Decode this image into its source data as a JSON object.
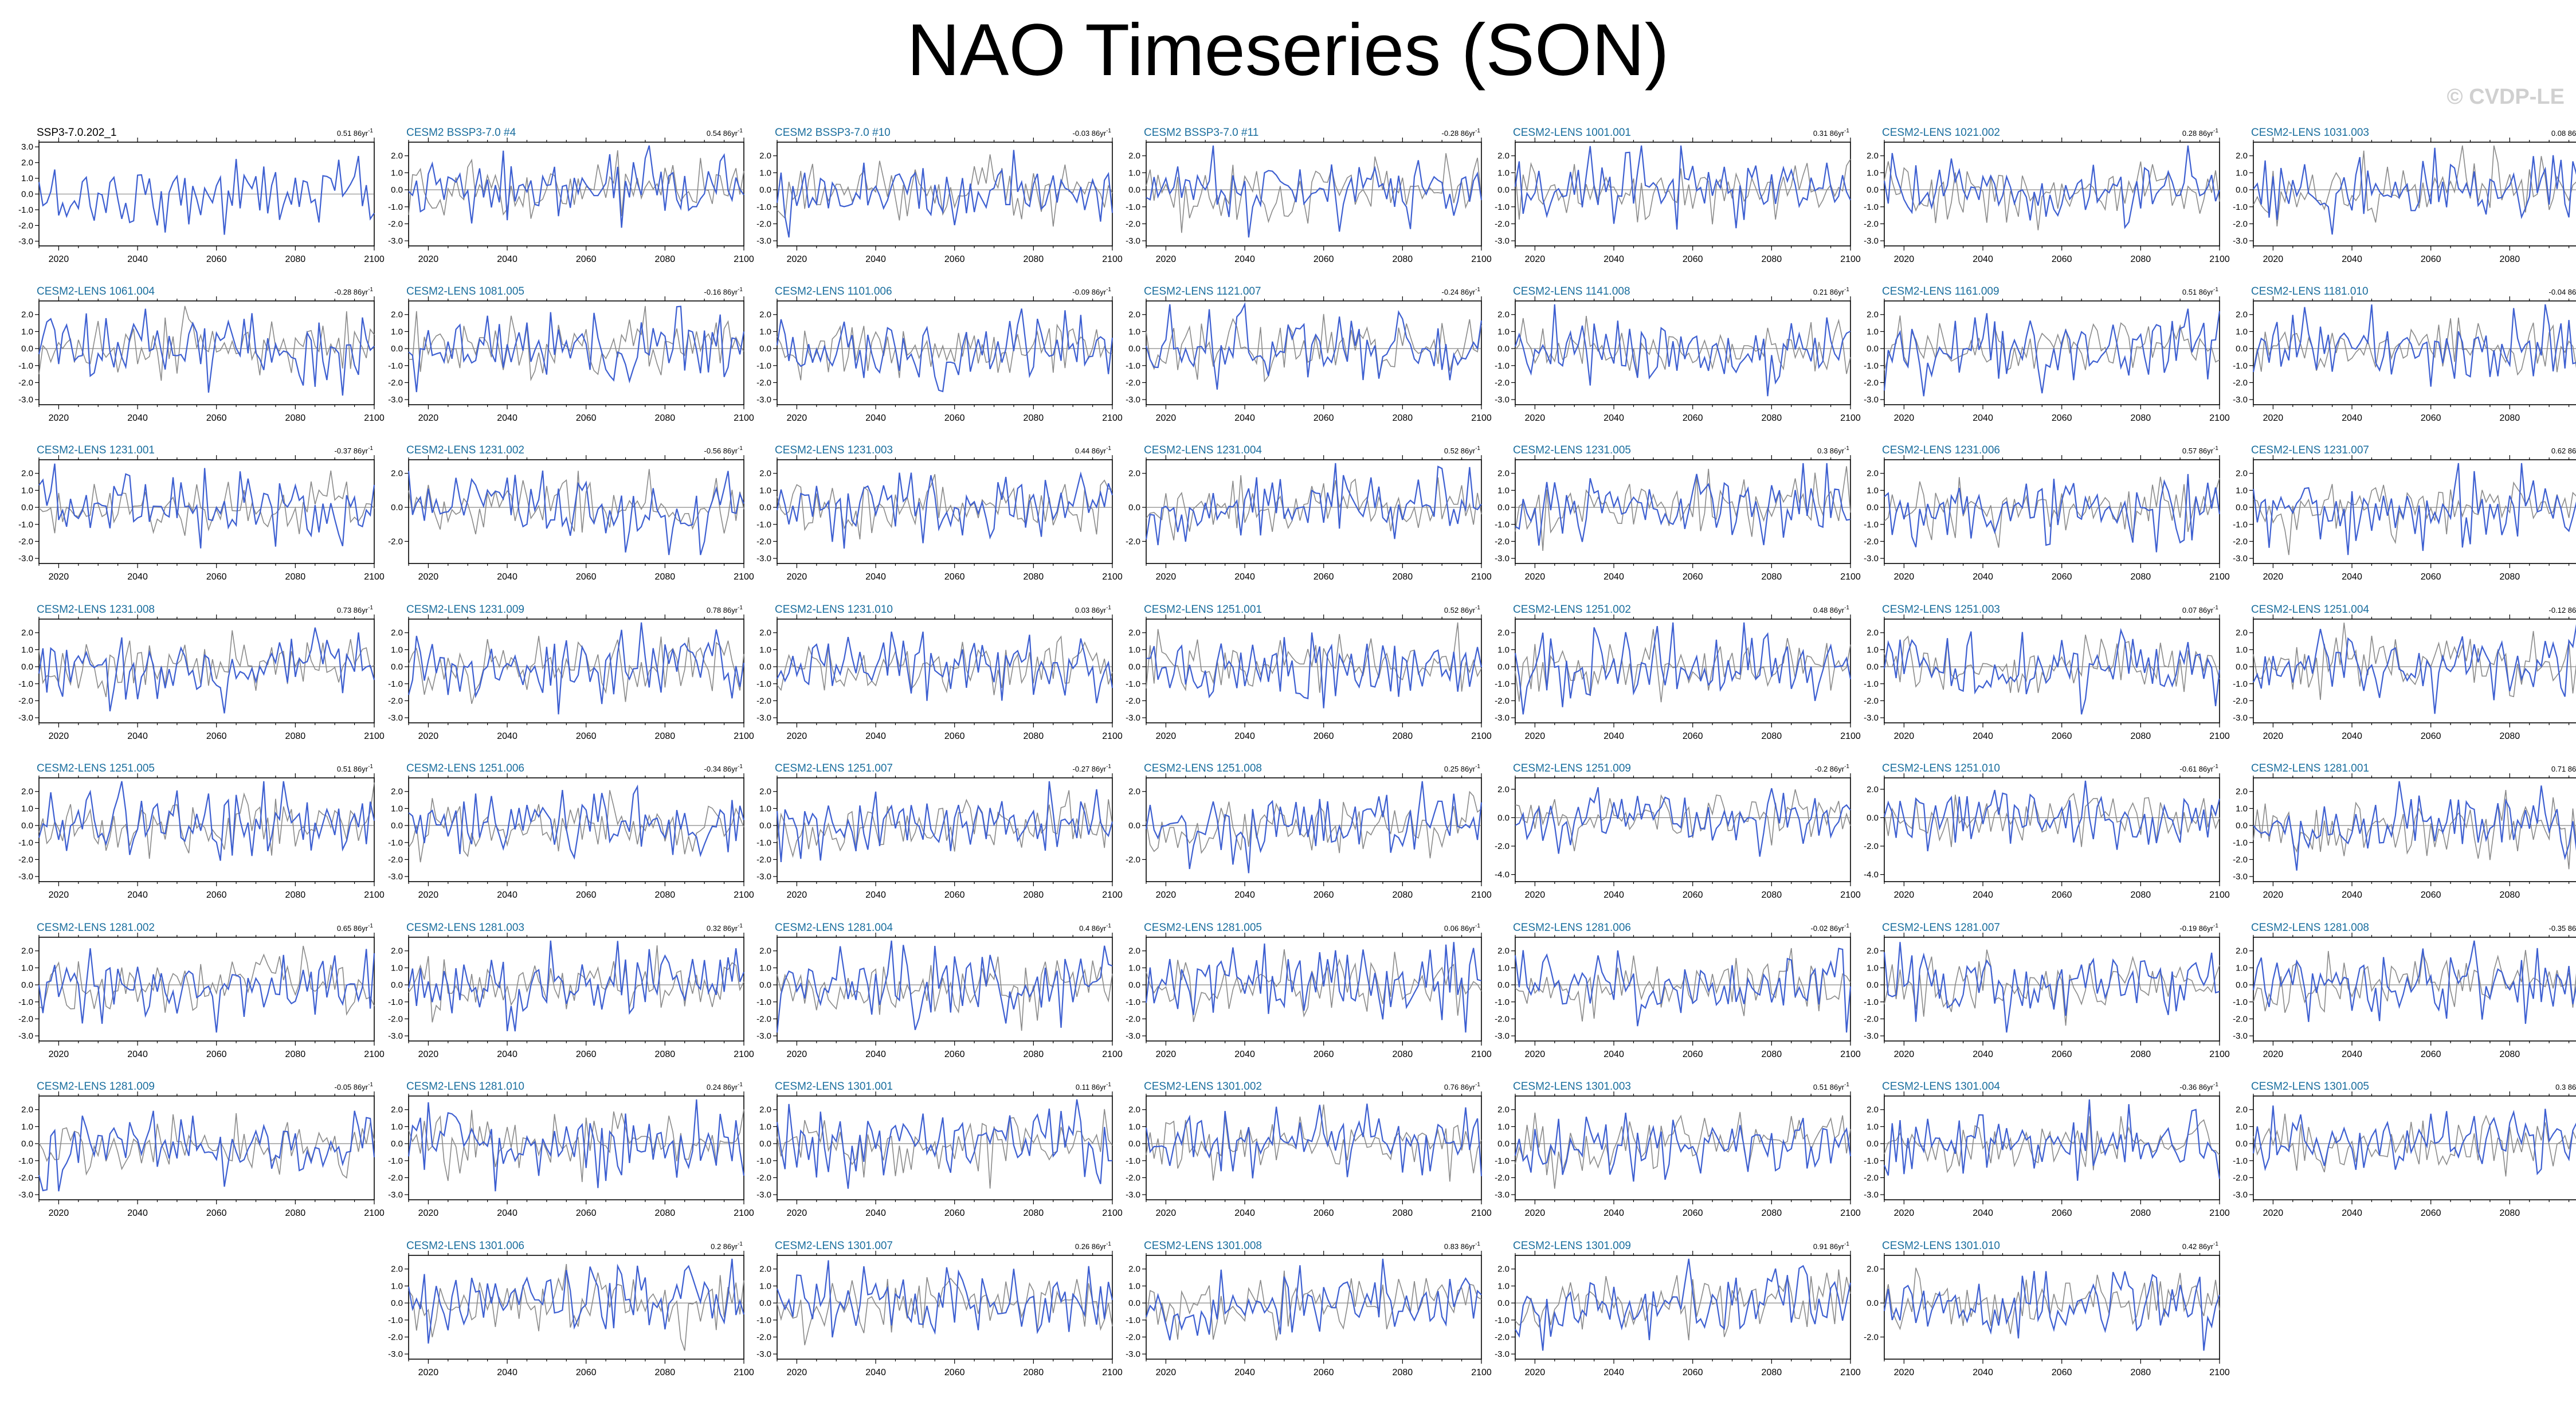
{
  "title": "NAO Timeseries (SON)",
  "watermark": "© CVDP-LE",
  "colors": {
    "member": "#3d5fd1",
    "obs": "#8a8a8a",
    "label_obs": "#000000",
    "label_member": "#1a6e9e",
    "axis": "#000000"
  },
  "chart_data": {
    "type": "line",
    "x_range": [
      2015,
      2100
    ],
    "x_ticks": [
      2020,
      2040,
      2060,
      2080,
      2100
    ],
    "y_ticks_default": [
      -3.0,
      -2.0,
      -1.0,
      0.0,
      1.0,
      2.0
    ],
    "trend_units": "86yr",
    "panels": [
      {
        "name": "SSP3-7.0.202_1",
        "trend": "0.51",
        "yticks": [
          -3.0,
          -2.0,
          -1.0,
          0.0,
          1.0,
          2.0,
          3.0
        ],
        "ylim": [
          -3.3,
          3.3
        ],
        "obs": true
      },
      {
        "name": "CESM2 BSSP3-7.0 #4",
        "trend": "0.54"
      },
      {
        "name": "CESM2 BSSP3-7.0 #10",
        "trend": "-0.03"
      },
      {
        "name": "CESM2 BSSP3-7.0 #11",
        "trend": "-0.28"
      },
      {
        "name": "CESM2-LENS 1001.001",
        "trend": "0.31"
      },
      {
        "name": "CESM2-LENS 1021.002",
        "trend": "0.28"
      },
      {
        "name": "CESM2-LENS 1031.003",
        "trend": "0.08"
      },
      {
        "name": "CESM2-LENS 1061.004",
        "trend": "-0.28"
      },
      {
        "name": "CESM2-LENS 1081.005",
        "trend": "-0.16"
      },
      {
        "name": "CESM2-LENS 1101.006",
        "trend": "-0.09"
      },
      {
        "name": "CESM2-LENS 1121.007",
        "trend": "-0.24"
      },
      {
        "name": "CESM2-LENS 1141.008",
        "trend": "0.21"
      },
      {
        "name": "CESM2-LENS 1161.009",
        "trend": "0.51"
      },
      {
        "name": "CESM2-LENS 1181.010",
        "trend": "-0.04"
      },
      {
        "name": "CESM2-LENS 1231.001",
        "trend": "-0.37"
      },
      {
        "name": "CESM2-LENS 1231.002",
        "trend": "-0.56",
        "yticks": [
          -2.0,
          0.0,
          2.0
        ]
      },
      {
        "name": "CESM2-LENS 1231.003",
        "trend": "0.44"
      },
      {
        "name": "CESM2-LENS 1231.004",
        "trend": "0.52",
        "yticks": [
          -2.0,
          0.0,
          2.0
        ]
      },
      {
        "name": "CESM2-LENS 1231.005",
        "trend": "0.3"
      },
      {
        "name": "CESM2-LENS 1231.006",
        "trend": "0.57"
      },
      {
        "name": "CESM2-LENS 1231.007",
        "trend": "0.62"
      },
      {
        "name": "CESM2-LENS 1231.008",
        "trend": "0.73"
      },
      {
        "name": "CESM2-LENS 1231.009",
        "trend": "0.78"
      },
      {
        "name": "CESM2-LENS 1231.010",
        "trend": "0.03"
      },
      {
        "name": "CESM2-LENS 1251.001",
        "trend": "0.52"
      },
      {
        "name": "CESM2-LENS 1251.002",
        "trend": "0.48"
      },
      {
        "name": "CESM2-LENS 1251.003",
        "trend": "0.07"
      },
      {
        "name": "CESM2-LENS 1251.004",
        "trend": "-0.12"
      },
      {
        "name": "CESM2-LENS 1251.005",
        "trend": "0.51"
      },
      {
        "name": "CESM2-LENS 1251.006",
        "trend": "-0.34"
      },
      {
        "name": "CESM2-LENS 1251.007",
        "trend": "-0.27"
      },
      {
        "name": "CESM2-LENS 1251.008",
        "trend": "0.25",
        "yticks": [
          -2.0,
          0.0,
          2.0
        ]
      },
      {
        "name": "CESM2-LENS 1251.009",
        "trend": "-0.2",
        "yticks": [
          -4.0,
          -2.0,
          0.0,
          2.0
        ],
        "ylim": [
          -4.5,
          2.8
        ]
      },
      {
        "name": "CESM2-LENS 1251.010",
        "trend": "-0.61",
        "yticks": [
          -4.0,
          -2.0,
          0.0,
          2.0
        ],
        "ylim": [
          -4.5,
          2.8
        ]
      },
      {
        "name": "CESM2-LENS 1281.001",
        "trend": "0.71"
      },
      {
        "name": "CESM2-LENS 1281.002",
        "trend": "0.65"
      },
      {
        "name": "CESM2-LENS 1281.003",
        "trend": "0.32"
      },
      {
        "name": "CESM2-LENS 1281.004",
        "trend": "0.4"
      },
      {
        "name": "CESM2-LENS 1281.005",
        "trend": "0.06"
      },
      {
        "name": "CESM2-LENS 1281.006",
        "trend": "-0.02"
      },
      {
        "name": "CESM2-LENS 1281.007",
        "trend": "-0.19"
      },
      {
        "name": "CESM2-LENS 1281.008",
        "trend": "-0.35"
      },
      {
        "name": "CESM2-LENS 1281.009",
        "trend": "-0.05"
      },
      {
        "name": "CESM2-LENS 1281.010",
        "trend": "0.24"
      },
      {
        "name": "CESM2-LENS 1301.001",
        "trend": "0.11"
      },
      {
        "name": "CESM2-LENS 1301.002",
        "trend": "0.76"
      },
      {
        "name": "CESM2-LENS 1301.003",
        "trend": "0.51"
      },
      {
        "name": "CESM2-LENS 1301.004",
        "trend": "-0.36"
      },
      {
        "name": "CESM2-LENS 1301.005",
        "trend": "0.3"
      },
      {
        "name": "CESM2-LENS 1301.006",
        "trend": "0.2",
        "slot": 50
      },
      {
        "name": "CESM2-LENS 1301.007",
        "trend": "0.26"
      },
      {
        "name": "CESM2-LENS 1301.008",
        "trend": "0.83"
      },
      {
        "name": "CESM2-LENS 1301.009",
        "trend": "0.91"
      },
      {
        "name": "CESM2-LENS 1301.010",
        "trend": "0.42",
        "yticks": [
          -2.0,
          0.0,
          2.0
        ]
      }
    ]
  }
}
